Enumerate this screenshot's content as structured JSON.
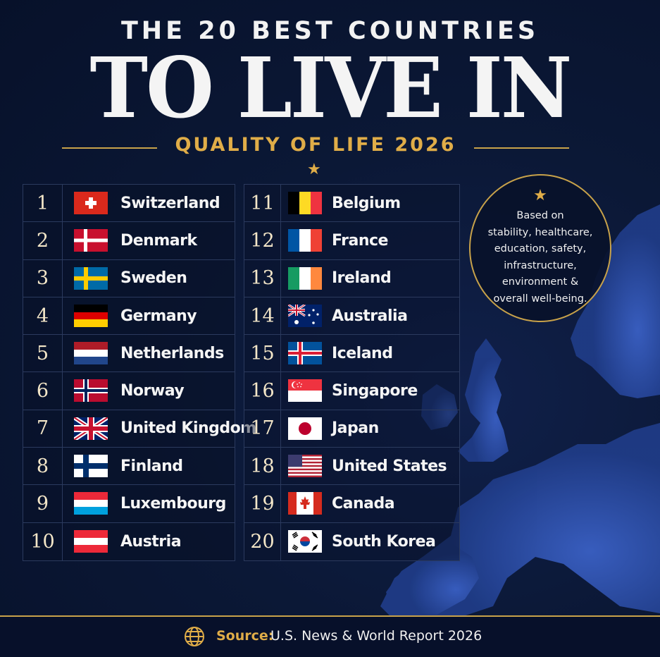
{
  "header": {
    "kicker": "THE 20 BEST COUNTRIES",
    "title": "TO LIVE IN",
    "subtitle": "QUALITY OF LIFE 2026"
  },
  "note": {
    "star": "★",
    "text_lines": [
      "Based on",
      "stability, healthcare,",
      "education, safety,",
      "infrastructure,",
      "environment &",
      "overall well-being."
    ]
  },
  "rankings": [
    {
      "rank": "1",
      "country": "Switzerland"
    },
    {
      "rank": "2",
      "country": "Denmark"
    },
    {
      "rank": "3",
      "country": "Sweden"
    },
    {
      "rank": "4",
      "country": "Germany"
    },
    {
      "rank": "5",
      "country": "Netherlands"
    },
    {
      "rank": "6",
      "country": "Norway"
    },
    {
      "rank": "7",
      "country": "United Kingdom"
    },
    {
      "rank": "8",
      "country": "Finland"
    },
    {
      "rank": "9",
      "country": "Luxembourg"
    },
    {
      "rank": "10",
      "country": "Austria"
    },
    {
      "rank": "11",
      "country": "Belgium"
    },
    {
      "rank": "12",
      "country": "France"
    },
    {
      "rank": "13",
      "country": "Ireland"
    },
    {
      "rank": "14",
      "country": "Australia"
    },
    {
      "rank": "15",
      "country": "Iceland"
    },
    {
      "rank": "16",
      "country": "Singapore"
    },
    {
      "rank": "17",
      "country": "Japan"
    },
    {
      "rank": "18",
      "country": "United States"
    },
    {
      "rank": "19",
      "country": "Canada"
    },
    {
      "rank": "20",
      "country": "South Korea"
    }
  ],
  "footer": {
    "source_label": "Source:",
    "source_value": "U.S. News & World Report 2026"
  },
  "colors": {
    "background": "#0b1836",
    "gold": "#e0ad48",
    "map": "#2d4fa8"
  },
  "icons": {
    "header": "star-icon",
    "footer": "globe-icon"
  }
}
